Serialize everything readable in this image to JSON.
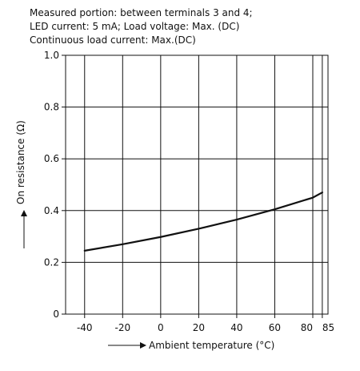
{
  "chart_data": {
    "type": "line",
    "notes": [
      "Measured portion: between terminals 3 and 4;",
      "LED current: 5 mA; Load voltage: Max. (DC)",
      "Continuous load current: Max.(DC)"
    ],
    "xlabel": "Ambient temperature (°C)",
    "ylabel": "On resistance (Ω)",
    "xlim": [
      -50,
      88
    ],
    "ylim": [
      0,
      1.0
    ],
    "x_ticks": [
      {
        "value": -40,
        "label": "-40"
      },
      {
        "value": -20,
        "label": "-20"
      },
      {
        "value": 0,
        "label": "0"
      },
      {
        "value": 20,
        "label": "20"
      },
      {
        "value": 40,
        "label": "40"
      },
      {
        "value": 60,
        "label": "60"
      },
      {
        "value": 80,
        "label": "80"
      },
      {
        "value": 85,
        "label": "85"
      }
    ],
    "y_ticks": [
      {
        "value": 0,
        "label": "0"
      },
      {
        "value": 0.2,
        "label": "0.2"
      },
      {
        "value": 0.4,
        "label": "0.4"
      },
      {
        "value": 0.6,
        "label": "0.6"
      },
      {
        "value": 0.8,
        "label": "0.8"
      },
      {
        "value": 1.0,
        "label": "1.0"
      }
    ],
    "grid": true,
    "series": [
      {
        "x": [
          -40,
          -20,
          0,
          20,
          40,
          60,
          80,
          85
        ],
        "y": [
          0.245,
          0.27,
          0.298,
          0.33,
          0.365,
          0.405,
          0.45,
          0.47
        ]
      }
    ]
  }
}
